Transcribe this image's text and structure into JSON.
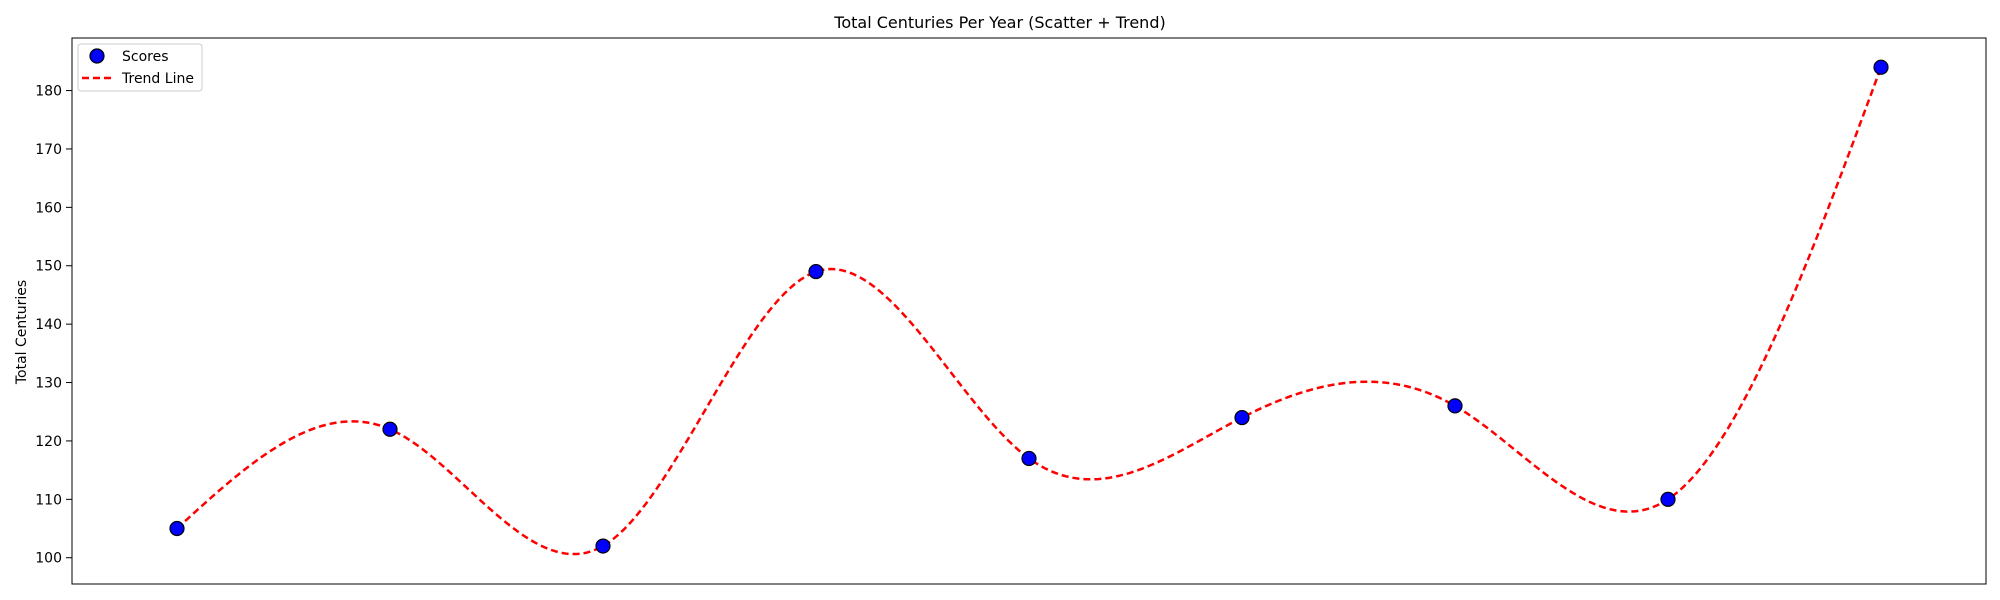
{
  "chart_data": {
    "type": "scatter",
    "title": "Total Centuries Per Year (Scatter + Trend)",
    "xlabel": "",
    "ylabel": "Total Centuries",
    "ylim": [
      95.5,
      189
    ],
    "yticks": [
      100,
      110,
      120,
      130,
      140,
      150,
      160,
      170,
      180
    ],
    "x": [
      1,
      2,
      3,
      4,
      5,
      6,
      7,
      8,
      9
    ],
    "series": [
      {
        "name": "Scores",
        "kind": "scatter",
        "values": [
          105,
          122,
          102,
          149,
          117,
          124,
          126,
          110,
          184
        ],
        "color": "#0000ff",
        "edge_color": "#000000"
      },
      {
        "name": "Trend Line",
        "kind": "line",
        "style": "dashed",
        "smooth": true,
        "values": [
          105,
          122,
          102,
          149,
          117,
          124,
          126,
          110,
          184
        ],
        "color": "#ff0000"
      }
    ],
    "legend": "top-left",
    "grid": false,
    "x_ticks_shown": false
  }
}
